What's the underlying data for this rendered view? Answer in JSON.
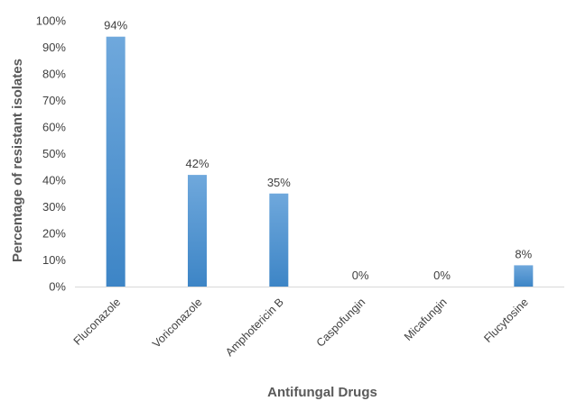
{
  "chart_data": {
    "type": "bar",
    "categories": [
      "Fluconazole",
      "Voriconazole",
      "Amphotericin B",
      "Caspofungin",
      "Micafungin",
      "Flucytosine"
    ],
    "values": [
      94,
      42,
      35,
      0,
      0,
      8
    ],
    "data_labels": [
      "94%",
      "42%",
      "35%",
      "0%",
      "0%",
      "8%"
    ],
    "xlabel": "Antifungal Drugs",
    "ylabel": "Percentage of resistant isolates",
    "ylim": [
      0,
      100
    ],
    "yticks": [
      "0%",
      "10%",
      "20%",
      "30%",
      "40%",
      "50%",
      "60%",
      "70%",
      "80%",
      "90%",
      "100%"
    ],
    "grid": false,
    "legend": "none",
    "colors": {
      "bar_top": "#6fa8dc",
      "bar_bottom": "#3d85c6",
      "axis": "#d9d9d9"
    }
  }
}
